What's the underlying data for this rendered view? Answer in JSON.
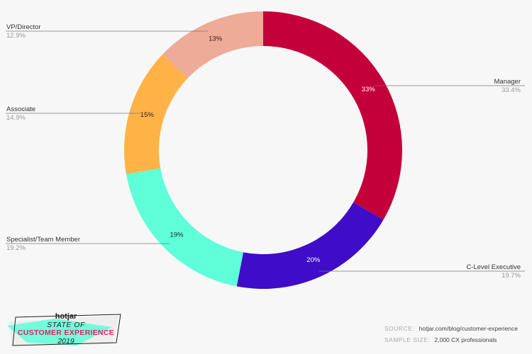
{
  "chart_data": {
    "type": "pie",
    "style": "donut",
    "slices": [
      {
        "name": "Manager",
        "value": 33.4,
        "value_label": "33.4%",
        "pct_label": "33%",
        "color": "#c4003a",
        "text_color": "#ffffff"
      },
      {
        "name": "C-Level Executive",
        "value": 19.7,
        "value_label": "19.7%",
        "pct_label": "20%",
        "color": "#3f0cc7",
        "text_color": "#ffffff"
      },
      {
        "name": "Specialist/Team Member",
        "value": 19.2,
        "value_label": "19.2%",
        "pct_label": "19%",
        "color": "#5effd9",
        "text_color": "#222222"
      },
      {
        "name": "Associate",
        "value": 14.9,
        "value_label": "14.9%",
        "pct_label": "15%",
        "color": "#ffb347",
        "text_color": "#222222"
      },
      {
        "name": "VP/Director",
        "value": 12.9,
        "value_label": "12.9%",
        "pct_label": "13%",
        "color": "#eeab98",
        "text_color": "#222222"
      }
    ],
    "start_angle_deg": 0,
    "direction": "clockwise"
  },
  "branding": {
    "brand": "hotjar",
    "line1": "STATE OF",
    "line2": "CUSTOMER EXPERIENCE",
    "line3": "2019",
    "accent_color": "#e0245e",
    "swoosh_color": "#5effd9"
  },
  "footer": {
    "source_key": "SOURCE:",
    "source_value": "hotjar.com/blog/customer-experience",
    "sample_key": "SAMPLE SIZE:",
    "sample_value": "2,000 CX professionals"
  }
}
